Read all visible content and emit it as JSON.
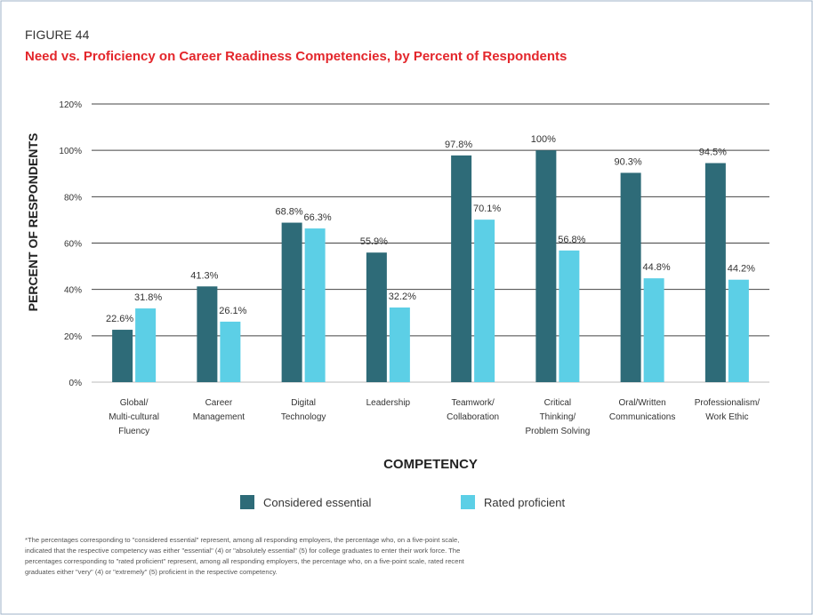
{
  "figure_label": "FIGURE 44",
  "chart_data": {
    "type": "bar",
    "title": "Need vs. Proficiency on Career Readiness Competencies, by Percent of Respondents",
    "xlabel": "COMPETENCY",
    "ylabel": "PERCENT OF RESPONDENTS",
    "categories": [
      "Global/\nMulti-cultural\nFluency",
      "Career\nManagement",
      "Digital\nTechnology",
      "Leadership",
      "Teamwork/\nCollaboration",
      "Critical\nThinking/\nProblem Solving",
      "Oral/Written\nCommunications",
      "Professionalism/\nWork Ethic"
    ],
    "series": [
      {
        "name": "Considered essential",
        "color": "#2e6b78",
        "values": [
          22.6,
          41.3,
          68.8,
          55.9,
          97.8,
          100,
          90.3,
          94.5
        ],
        "value_labels": [
          "22.6%",
          "41.3%",
          "68.8%",
          "55.9%",
          "97.8%",
          "100%",
          "90.3%",
          "94.5%"
        ]
      },
      {
        "name": "Rated proficient",
        "color": "#5ccfe6",
        "values": [
          31.8,
          26.1,
          66.3,
          32.2,
          70.1,
          56.8,
          44.8,
          44.2
        ],
        "value_labels": [
          "31.8%",
          "26.1%",
          "66.3%",
          "32.2%",
          "70.1%",
          "56.8%",
          "44.8%",
          "44.2%"
        ]
      }
    ],
    "ylim": [
      0,
      120
    ],
    "yticks": [
      {
        "value": 0,
        "label": "0%"
      },
      {
        "value": 20,
        "label": "20%"
      },
      {
        "value": 40,
        "label": "40%"
      },
      {
        "value": 60,
        "label": "60%"
      },
      {
        "value": 80,
        "label": "80%"
      },
      {
        "value": 100,
        "label": "100%"
      },
      {
        "value": 120,
        "label": "120%"
      }
    ],
    "grid": true,
    "legend": "bottom"
  },
  "footnote": [
    "*The percentages corresponding to \"considered essential\" represent, among all responding employers, the percentage who, on a five-point scale,",
    "indicated that the respective competency was either \"essential\" (4) or \"absolutely essential\" (5) for college graduates to enter their work force. The",
    "percentages corresponding to \"rated proficient\" represent, among all responding employers, the percentage who, on a five-point scale, rated recent",
    "graduates either \"very\" (4) or \"extremely\" (5) proficient in the respective competency."
  ]
}
